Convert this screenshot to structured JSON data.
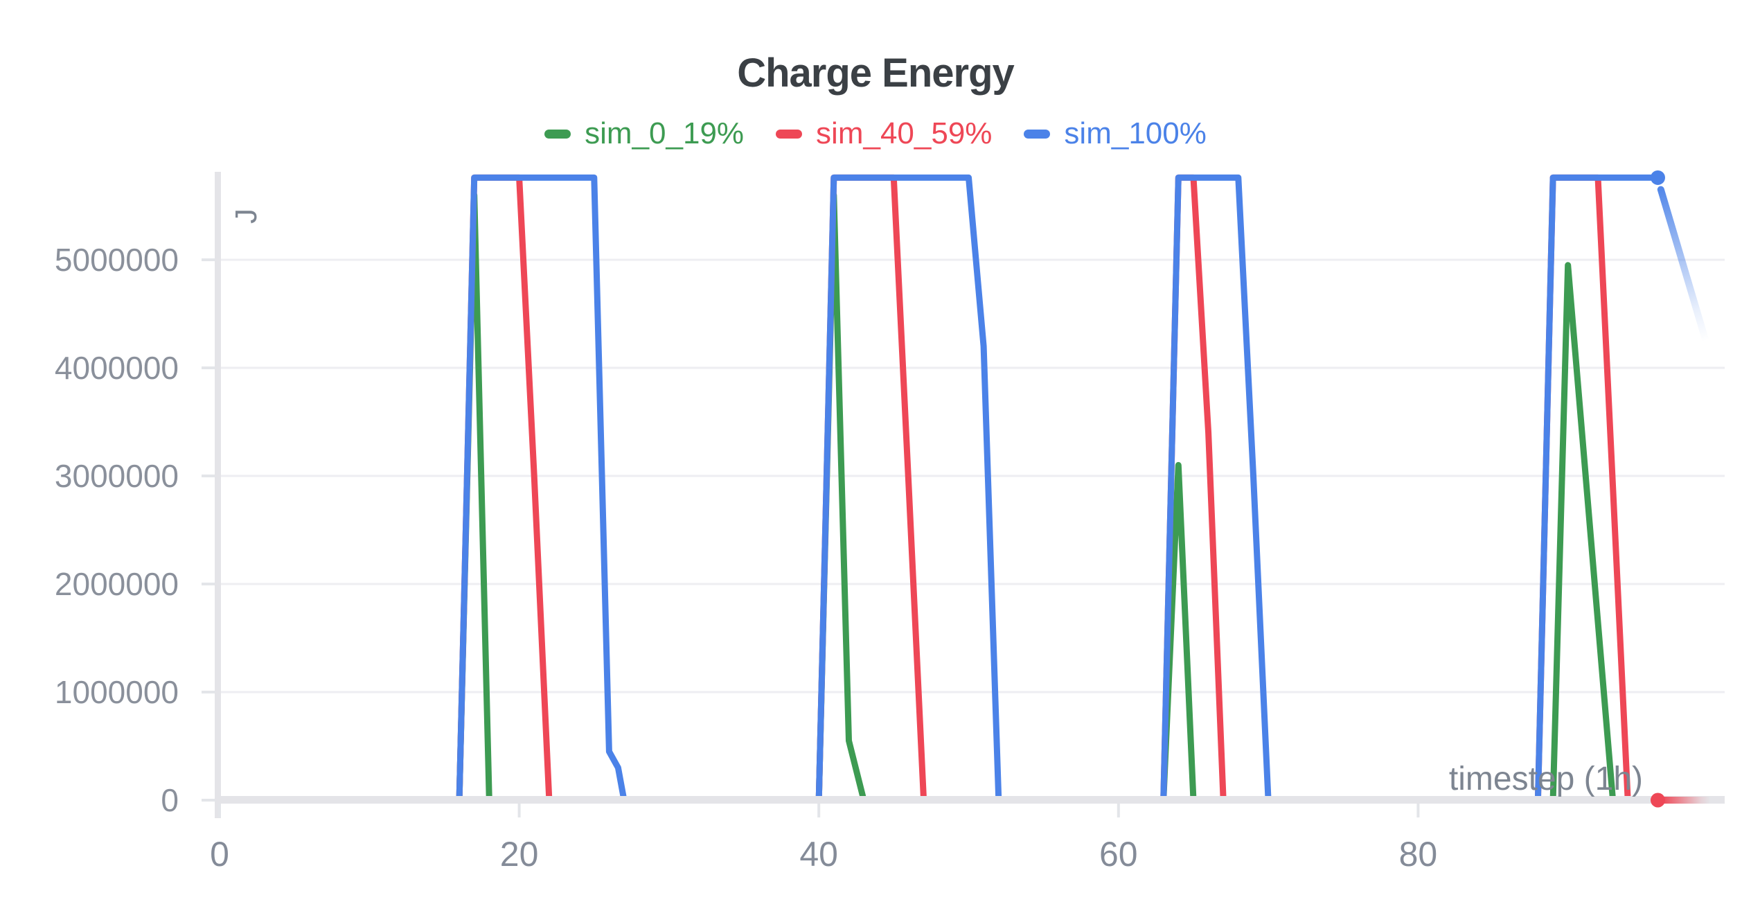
{
  "title": "Charge Energy",
  "legend": {
    "items": [
      {
        "label": "sim_0_19%",
        "color": "#3d9b52"
      },
      {
        "label": "sim_40_59%",
        "color": "#ee4756"
      },
      {
        "label": "sim_100%",
        "color": "#4b82e8"
      }
    ]
  },
  "colors": {
    "green": "#3d9b52",
    "red": "#ee4756",
    "blue": "#4b82e8",
    "title_text": "#3b4045",
    "axis_line": "#e4e4e8",
    "tick_mark": "#e3e5e9",
    "gridline": "#eeeef2",
    "y_tick_text": "#8a909b",
    "x_tick_text": "#848b98",
    "axis_name_text": "#7d8591"
  },
  "chart_data": {
    "type": "line",
    "title": "Charge Energy",
    "xlabel": "timestep (1h)",
    "ylabel": "J",
    "xlim": [
      0,
      97
    ],
    "ylim": [
      0,
      5760000
    ],
    "x_ticks": [
      0,
      20,
      40,
      60,
      80
    ],
    "y_ticks": [
      0,
      1000000,
      2000000,
      3000000,
      4000000,
      5000000
    ],
    "grid": true,
    "legend_position": "top",
    "series": [
      {
        "name": "sim_0_19%",
        "color": "#3d9b52",
        "points": [
          [
            0,
            0
          ],
          [
            16,
            0
          ],
          [
            17,
            5600000
          ],
          [
            18,
            0
          ],
          [
            40,
            0
          ],
          [
            41,
            5600000
          ],
          [
            42,
            550000
          ],
          [
            43,
            0
          ],
          [
            63,
            0
          ],
          [
            64,
            3100000
          ],
          [
            65,
            0
          ],
          [
            89,
            0
          ],
          [
            90,
            4950000
          ],
          [
            93,
            0
          ],
          [
            96,
            0
          ]
        ]
      },
      {
        "name": "sim_40_59%",
        "color": "#ee4756",
        "points": [
          [
            0,
            0
          ],
          [
            16,
            0
          ],
          [
            17,
            5760000
          ],
          [
            20,
            5760000
          ],
          [
            21,
            3000000
          ],
          [
            22,
            0
          ],
          [
            40,
            0
          ],
          [
            41,
            5760000
          ],
          [
            45,
            5760000
          ],
          [
            46,
            2900000
          ],
          [
            47,
            0
          ],
          [
            63,
            0
          ],
          [
            64,
            5760000
          ],
          [
            65,
            5760000
          ],
          [
            66,
            3400000
          ],
          [
            67,
            0
          ],
          [
            88,
            0
          ],
          [
            89,
            5760000
          ],
          [
            92,
            5760000
          ],
          [
            93,
            2900000
          ],
          [
            94,
            0
          ],
          [
            96,
            0
          ]
        ],
        "end_dot": [
          96,
          0
        ],
        "fade_tail": {
          "from": [
            96.4,
            0
          ],
          "to": [
            99.5,
            0
          ]
        }
      },
      {
        "name": "sim_100%",
        "color": "#4b82e8",
        "points": [
          [
            0,
            0
          ],
          [
            16,
            0
          ],
          [
            17,
            5760000
          ],
          [
            25,
            5760000
          ],
          [
            26,
            450000
          ],
          [
            26.6,
            300000
          ],
          [
            27,
            0
          ],
          [
            40,
            0
          ],
          [
            41,
            5760000
          ],
          [
            50,
            5760000
          ],
          [
            51,
            4200000
          ],
          [
            52,
            0
          ],
          [
            63,
            0
          ],
          [
            64,
            5760000
          ],
          [
            68,
            5760000
          ],
          [
            69,
            3000000
          ],
          [
            70,
            0
          ],
          [
            88,
            0
          ],
          [
            89,
            5760000
          ],
          [
            96,
            5760000
          ]
        ],
        "end_dot": [
          96,
          5760000
        ],
        "fade_tail": {
          "from": [
            96.2,
            5650000
          ],
          "to": [
            99.2,
            4250000
          ]
        }
      }
    ]
  }
}
